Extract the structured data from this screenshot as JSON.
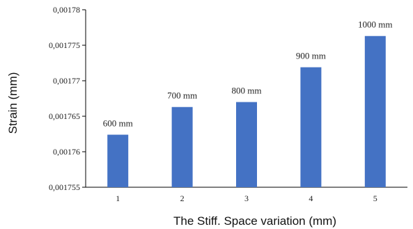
{
  "chart_data": {
    "type": "bar",
    "categories": [
      "1",
      "2",
      "3",
      "4",
      "5"
    ],
    "values": [
      0.0017624,
      0.0017663,
      0.001767,
      0.0017719,
      0.0017763
    ],
    "data_labels": [
      "600 mm",
      "700 mm",
      "800 mm",
      "900 mm",
      "1000 mm"
    ],
    "xlabel": "The Stiff. Space variation (mm)",
    "ylabel": "Strain (mm)",
    "ylim": [
      0.001755,
      0.00178
    ],
    "yticks": [
      0.001755,
      0.00176,
      0.001765,
      0.00177,
      0.001775,
      0.00178
    ],
    "ytick_labels": [
      "0,001755",
      "0,00176",
      "0,001765",
      "0,00177",
      "0,001775",
      "0,00178"
    ],
    "grid": false,
    "bar_color": "#4472C4"
  }
}
